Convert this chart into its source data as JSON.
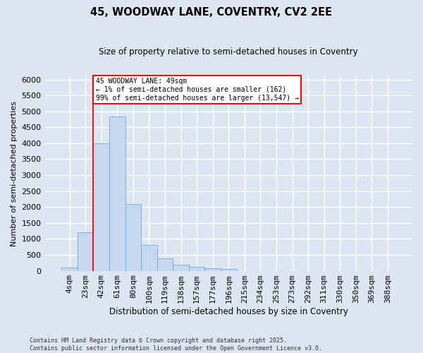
{
  "title_line1": "45, WOODWAY LANE, COVENTRY, CV2 2EE",
  "title_line2": "Size of property relative to semi-detached houses in Coventry",
  "xlabel": "Distribution of semi-detached houses by size in Coventry",
  "ylabel": "Number of semi-detached properties",
  "categories": [
    "4sqm",
    "23sqm",
    "42sqm",
    "61sqm",
    "80sqm",
    "100sqm",
    "119sqm",
    "138sqm",
    "157sqm",
    "177sqm",
    "196sqm",
    "215sqm",
    "234sqm",
    "253sqm",
    "273sqm",
    "292sqm",
    "311sqm",
    "330sqm",
    "350sqm",
    "369sqm",
    "388sqm"
  ],
  "values": [
    100,
    1200,
    4000,
    4850,
    2100,
    800,
    400,
    200,
    130,
    80,
    50,
    0,
    0,
    0,
    0,
    0,
    0,
    0,
    0,
    0,
    0
  ],
  "bar_color": "#c5d8f0",
  "bar_edge_color": "#6aaad4",
  "vline_index": 2,
  "vline_color": "red",
  "annotation_text": "45 WOODWAY LANE: 49sqm\n← 1% of semi-detached houses are smaller (162)\n99% of semi-detached houses are larger (13,547) →",
  "annotation_box_color": "white",
  "annotation_box_edge": "red",
  "ylim": [
    0,
    6100
  ],
  "yticks": [
    0,
    500,
    1000,
    1500,
    2000,
    2500,
    3000,
    3500,
    4000,
    4500,
    5000,
    5500,
    6000
  ],
  "background_color": "#dde5f0",
  "grid_color": "white",
  "footer_line1": "Contains HM Land Registry data © Crown copyright and database right 2025.",
  "footer_line2": "Contains public sector information licensed under the Open Government Licence v3.0."
}
